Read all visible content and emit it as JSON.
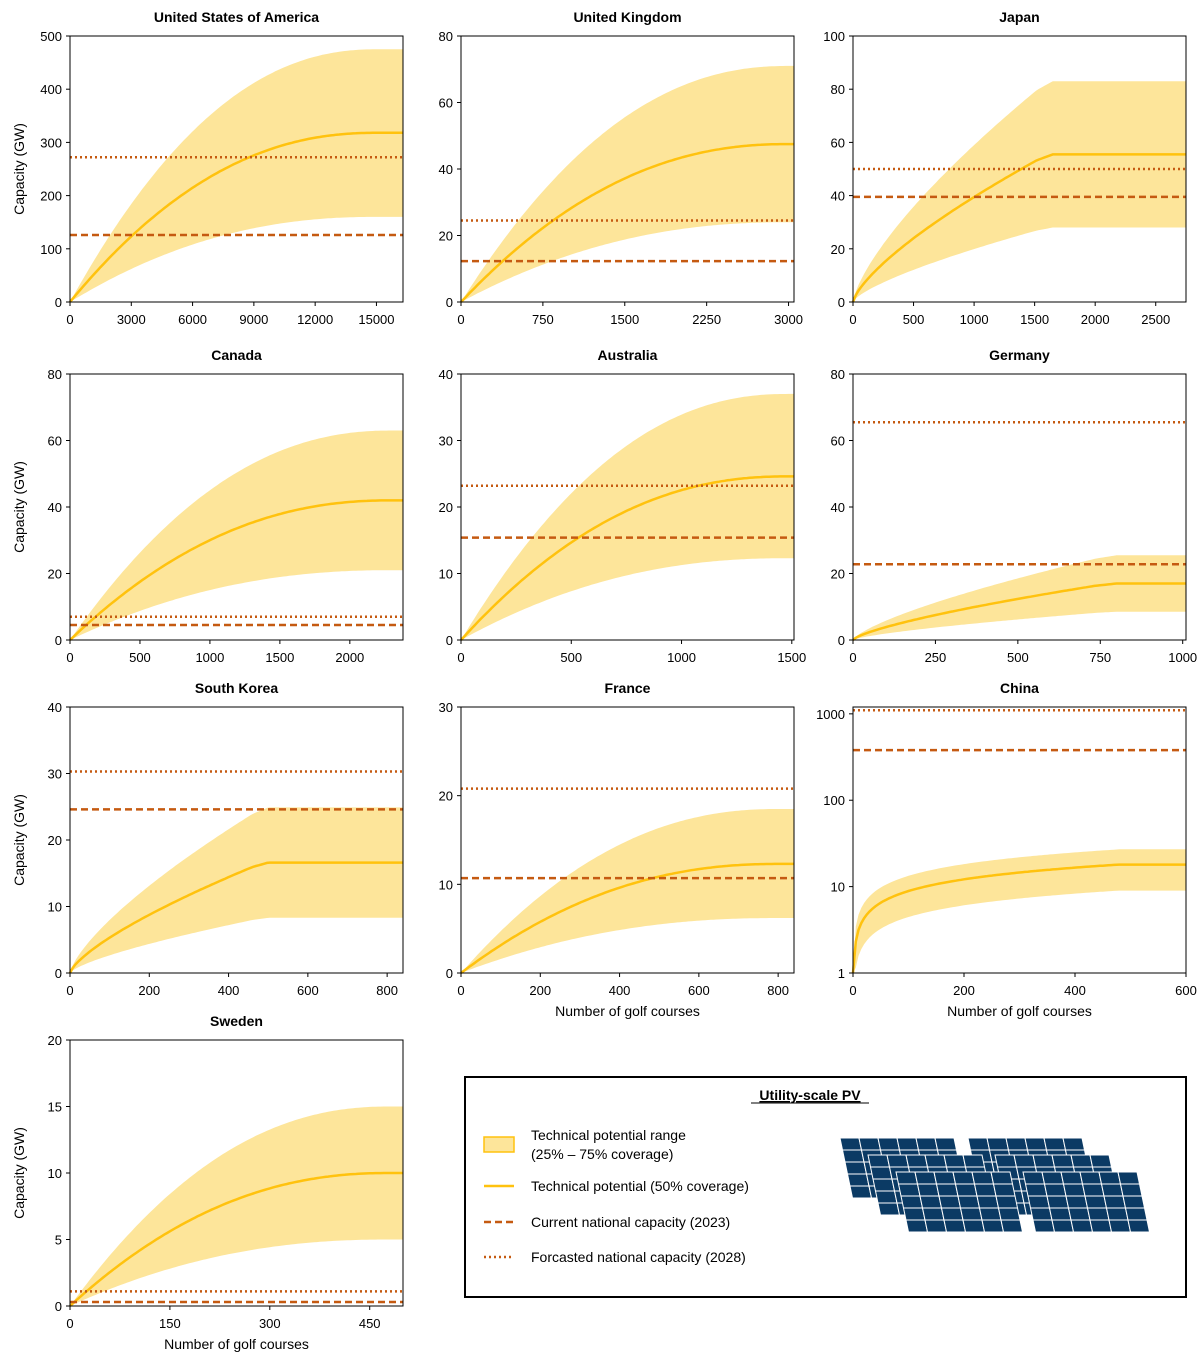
{
  "colors": {
    "band_fill": "#fde59a",
    "band_stroke": "#ffc20e",
    "median_line": "#ffc20e",
    "current_line": "#c55a11",
    "forecast_line": "#c55a11",
    "axis": "#000000",
    "panel_navy": "#0b3a64"
  },
  "axis_labels": {
    "y": "Capacity (GW)",
    "x": "Number of golf courses"
  },
  "legend": {
    "title": "Utility-scale PV",
    "range_line1": "Technical potential range",
    "range_line2": "(25% – 75% coverage)",
    "median": "Technical potential (50% coverage)",
    "current": "Current national capacity (2023)",
    "forecast": "Forcasted national capacity (2028)",
    "image_icon": "solar-panel-array-icon"
  },
  "chart_data": [
    {
      "type": "area",
      "title": "United States of America",
      "ylabel": "Capacity (GW)",
      "xlabel": "",
      "xlim": [
        0,
        16300
      ],
      "xticks": [
        0,
        3000,
        6000,
        9000,
        12000,
        15000
      ],
      "ylim": [
        0,
        500
      ],
      "yticks": [
        0,
        100,
        200,
        300,
        400,
        500
      ],
      "ylog": false,
      "x_max": 16300,
      "shape": "smooth",
      "sat": 15000,
      "low_max": 160,
      "median_max": 318,
      "high_max": 475,
      "current_2023": 126,
      "forecast_2028": 272
    },
    {
      "type": "area",
      "title": "United Kingdom",
      "ylabel": "",
      "xlabel": "",
      "xlim": [
        0,
        3050
      ],
      "xticks": [
        0,
        750,
        1500,
        2250,
        3000
      ],
      "ylim": [
        0,
        80
      ],
      "yticks": [
        0,
        20,
        40,
        60,
        80
      ],
      "ylog": false,
      "x_max": 3050,
      "shape": "smooth",
      "sat": 3000,
      "low_max": 24,
      "median_max": 47.5,
      "high_max": 71,
      "current_2023": 12.3,
      "forecast_2028": 24.5
    },
    {
      "type": "area",
      "title": "Japan",
      "ylabel": "",
      "xlabel": "",
      "xlim": [
        0,
        2750
      ],
      "xticks": [
        0,
        500,
        1000,
        1500,
        2000,
        2500
      ],
      "ylim": [
        0,
        100
      ],
      "yticks": [
        0,
        20,
        40,
        60,
        80,
        100
      ],
      "ylog": false,
      "x_max": 2750,
      "shape": "knee",
      "sat": 1650,
      "low_max": 28,
      "median_max": 55.5,
      "high_max": 83,
      "current_2023": 39.5,
      "forecast_2028": 50
    },
    {
      "type": "area",
      "title": "Canada",
      "ylabel": "Capacity (GW)",
      "xlabel": "",
      "xlim": [
        0,
        2380
      ],
      "xticks": [
        0,
        500,
        1000,
        1500,
        2000
      ],
      "ylim": [
        0,
        80
      ],
      "yticks": [
        0,
        20,
        40,
        60,
        80
      ],
      "ylog": false,
      "x_max": 2380,
      "shape": "smooth",
      "sat": 2300,
      "low_max": 21,
      "median_max": 42,
      "high_max": 63,
      "current_2023": 4.5,
      "forecast_2028": 7
    },
    {
      "type": "area",
      "title": "Australia",
      "ylabel": "",
      "xlabel": "",
      "xlim": [
        0,
        1510
      ],
      "xticks": [
        0,
        500,
        1000,
        1500
      ],
      "ylim": [
        0,
        40
      ],
      "yticks": [
        0,
        10,
        20,
        30,
        40
      ],
      "ylog": false,
      "x_max": 1510,
      "shape": "smooth",
      "sat": 1480,
      "low_max": 12.3,
      "median_max": 24.6,
      "high_max": 37,
      "current_2023": 15.4,
      "forecast_2028": 23.2
    },
    {
      "type": "area",
      "title": "Germany",
      "ylabel": "",
      "xlabel": "",
      "xlim": [
        0,
        1010
      ],
      "xticks": [
        0,
        250,
        500,
        750,
        1000
      ],
      "ylim": [
        0,
        80
      ],
      "yticks": [
        0,
        20,
        40,
        60,
        80
      ],
      "ylog": false,
      "x_max": 1010,
      "shape": "knee",
      "sat": 800,
      "low_max": 8.5,
      "median_max": 17,
      "high_max": 25.5,
      "current_2023": 22.8,
      "forecast_2028": 65.5
    },
    {
      "type": "area",
      "title": "South Korea",
      "ylabel": "Capacity (GW)",
      "xlabel": "",
      "xlim": [
        0,
        840
      ],
      "xticks": [
        0,
        200,
        400,
        600,
        800
      ],
      "ylim": [
        0,
        40
      ],
      "yticks": [
        0,
        10,
        20,
        30,
        40
      ],
      "ylog": false,
      "x_max": 840,
      "shape": "knee",
      "sat": 500,
      "low_max": 8.3,
      "median_max": 16.6,
      "high_max": 24.9,
      "current_2023": 24.6,
      "forecast_2028": 30.3
    },
    {
      "type": "area",
      "title": "France",
      "ylabel": "",
      "xlabel": "Number of golf courses",
      "xlim": [
        0,
        840
      ],
      "xticks": [
        0,
        200,
        400,
        600,
        800
      ],
      "ylim": [
        0,
        30
      ],
      "yticks": [
        0,
        10,
        20,
        30
      ],
      "ylog": false,
      "x_max": 840,
      "shape": "smooth",
      "sat": 800,
      "low_max": 6.2,
      "median_max": 12.3,
      "high_max": 18.5,
      "current_2023": 10.7,
      "forecast_2028": 20.8
    },
    {
      "type": "area",
      "title": "China",
      "ylabel": "",
      "xlabel": "Number of golf courses",
      "xlim": [
        0,
        600
      ],
      "xticks": [
        0,
        200,
        400,
        600
      ],
      "ylim": [
        1,
        1200
      ],
      "yticks": [
        1,
        10,
        100,
        1000
      ],
      "ylog": true,
      "x_max": 600,
      "shape": "china",
      "sat": 480,
      "low_max": 9,
      "median_max": 18,
      "high_max": 27,
      "current_2023": 380,
      "forecast_2028": 1100
    },
    {
      "type": "area",
      "title": "Sweden",
      "ylabel": "Capacity (GW)",
      "xlabel": "Number of golf courses",
      "xlim": [
        0,
        500
      ],
      "xticks": [
        0,
        150,
        300,
        450
      ],
      "ylim": [
        0,
        20
      ],
      "yticks": [
        0,
        5,
        10,
        15,
        20
      ],
      "ylog": false,
      "x_max": 500,
      "shape": "smooth",
      "sat": 480,
      "low_max": 5,
      "median_max": 10,
      "high_max": 15,
      "current_2023": 0.3,
      "forecast_2028": 1.1
    }
  ]
}
